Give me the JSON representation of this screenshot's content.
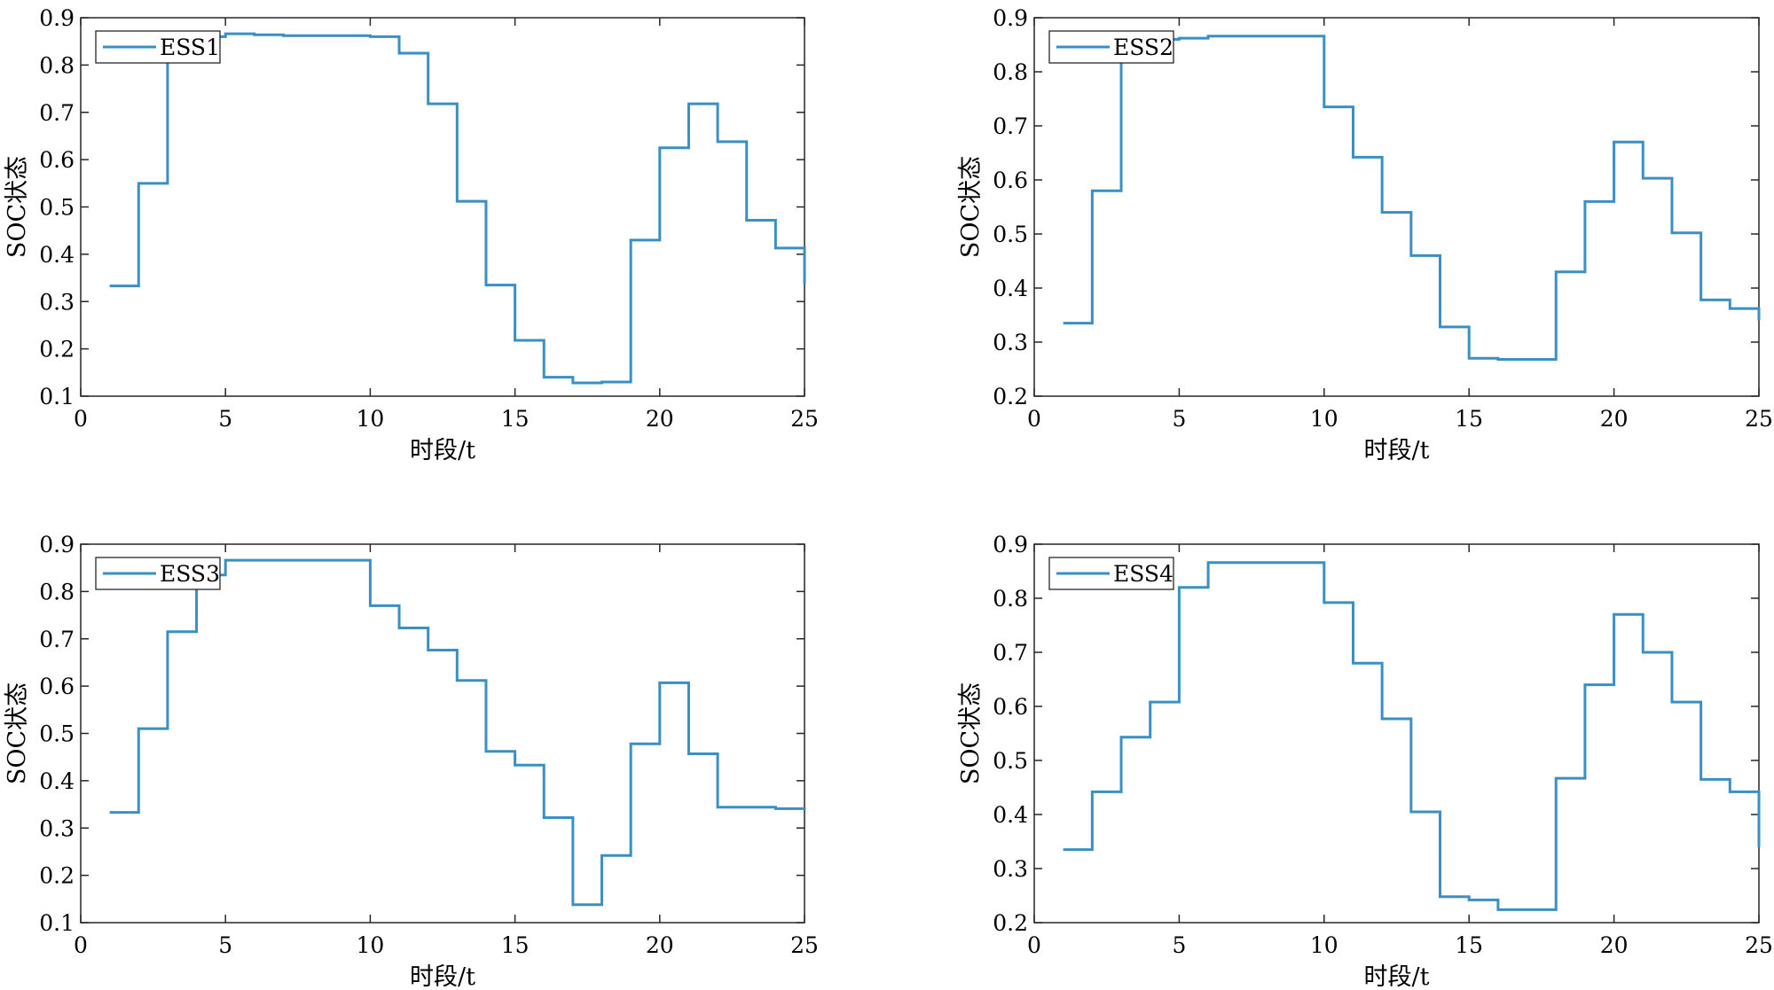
{
  "figure": {
    "background": "#ffffff",
    "line_color": "#3a8fc4"
  },
  "chart_data": [
    {
      "type": "line",
      "step": "post",
      "title": "",
      "xlabel": "时段/t",
      "ylabel": "SOC状态",
      "xlim": [
        0,
        25
      ],
      "ylim": [
        0.1,
        0.9
      ],
      "xticks": [
        0,
        5,
        10,
        15,
        20,
        25
      ],
      "yticks": [
        0.1,
        0.2,
        0.3,
        0.4,
        0.5,
        0.6,
        0.7,
        0.8,
        0.9
      ],
      "legend": {
        "position": "top-left",
        "entries": [
          "ESS1"
        ]
      },
      "series": [
        {
          "name": "ESS1",
          "x": [
            1,
            2,
            3,
            4,
            5,
            6,
            7,
            8,
            9,
            10,
            11,
            12,
            13,
            14,
            15,
            16,
            17,
            18,
            19,
            20,
            21,
            22,
            23,
            24,
            25
          ],
          "values": [
            0.333,
            0.55,
            0.84,
            0.86,
            0.866,
            0.864,
            0.862,
            0.862,
            0.862,
            0.86,
            0.825,
            0.718,
            0.512,
            0.335,
            0.218,
            0.14,
            0.128,
            0.13,
            0.43,
            0.625,
            0.718,
            0.638,
            0.472,
            0.413,
            0.337
          ]
        }
      ]
    },
    {
      "type": "line",
      "step": "post",
      "title": "",
      "xlabel": "时段/t",
      "ylabel": "SOC状态",
      "xlim": [
        0,
        25
      ],
      "ylim": [
        0.2,
        0.9
      ],
      "xticks": [
        0,
        5,
        10,
        15,
        20,
        25
      ],
      "yticks": [
        0.2,
        0.3,
        0.4,
        0.5,
        0.6,
        0.7,
        0.8,
        0.9
      ],
      "legend": {
        "position": "top-left",
        "entries": [
          "ESS2"
        ]
      },
      "series": [
        {
          "name": "ESS2",
          "x": [
            1,
            2,
            3,
            4,
            5,
            6,
            7,
            8,
            9,
            10,
            11,
            12,
            13,
            14,
            15,
            16,
            17,
            18,
            19,
            20,
            21,
            22,
            23,
            24,
            25
          ],
          "values": [
            0.335,
            0.58,
            0.855,
            0.86,
            0.862,
            0.866,
            0.866,
            0.866,
            0.866,
            0.735,
            0.642,
            0.54,
            0.46,
            0.328,
            0.27,
            0.268,
            0.268,
            0.43,
            0.56,
            0.67,
            0.603,
            0.502,
            0.378,
            0.362,
            0.34
          ]
        }
      ]
    },
    {
      "type": "line",
      "step": "post",
      "title": "",
      "xlabel": "时段/t",
      "ylabel": "SOC状态",
      "xlim": [
        0,
        25
      ],
      "ylim": [
        0.1,
        0.9
      ],
      "xticks": [
        0,
        5,
        10,
        15,
        20,
        25
      ],
      "yticks": [
        0.1,
        0.2,
        0.3,
        0.4,
        0.5,
        0.6,
        0.7,
        0.8,
        0.9
      ],
      "legend": {
        "position": "top-left",
        "entries": [
          "ESS3"
        ]
      },
      "series": [
        {
          "name": "ESS3",
          "x": [
            1,
            2,
            3,
            4,
            5,
            6,
            7,
            8,
            9,
            10,
            11,
            12,
            13,
            14,
            15,
            16,
            17,
            18,
            19,
            20,
            21,
            22,
            23,
            24,
            25
          ],
          "values": [
            0.333,
            0.51,
            0.715,
            0.835,
            0.866,
            0.866,
            0.866,
            0.866,
            0.866,
            0.77,
            0.723,
            0.676,
            0.612,
            0.462,
            0.433,
            0.322,
            0.138,
            0.242,
            0.478,
            0.607,
            0.457,
            0.344,
            0.344,
            0.341,
            0.34
          ]
        }
      ]
    },
    {
      "type": "line",
      "step": "post",
      "title": "",
      "xlabel": "时段/t",
      "ylabel": "SOC状态",
      "xlim": [
        0,
        25
      ],
      "ylim": [
        0.2,
        0.9
      ],
      "xticks": [
        0,
        5,
        10,
        15,
        20,
        25
      ],
      "yticks": [
        0.2,
        0.3,
        0.4,
        0.5,
        0.6,
        0.7,
        0.8,
        0.9
      ],
      "legend": {
        "position": "top-left",
        "entries": [
          "ESS4"
        ]
      },
      "series": [
        {
          "name": "ESS4",
          "x": [
            1,
            2,
            3,
            4,
            5,
            6,
            7,
            8,
            9,
            10,
            11,
            12,
            13,
            14,
            15,
            16,
            17,
            18,
            19,
            20,
            21,
            22,
            23,
            24,
            25
          ],
          "values": [
            0.335,
            0.442,
            0.543,
            0.608,
            0.82,
            0.866,
            0.866,
            0.866,
            0.866,
            0.792,
            0.68,
            0.577,
            0.405,
            0.248,
            0.242,
            0.224,
            0.224,
            0.467,
            0.64,
            0.77,
            0.7,
            0.608,
            0.465,
            0.442,
            0.34
          ]
        }
      ]
    }
  ]
}
